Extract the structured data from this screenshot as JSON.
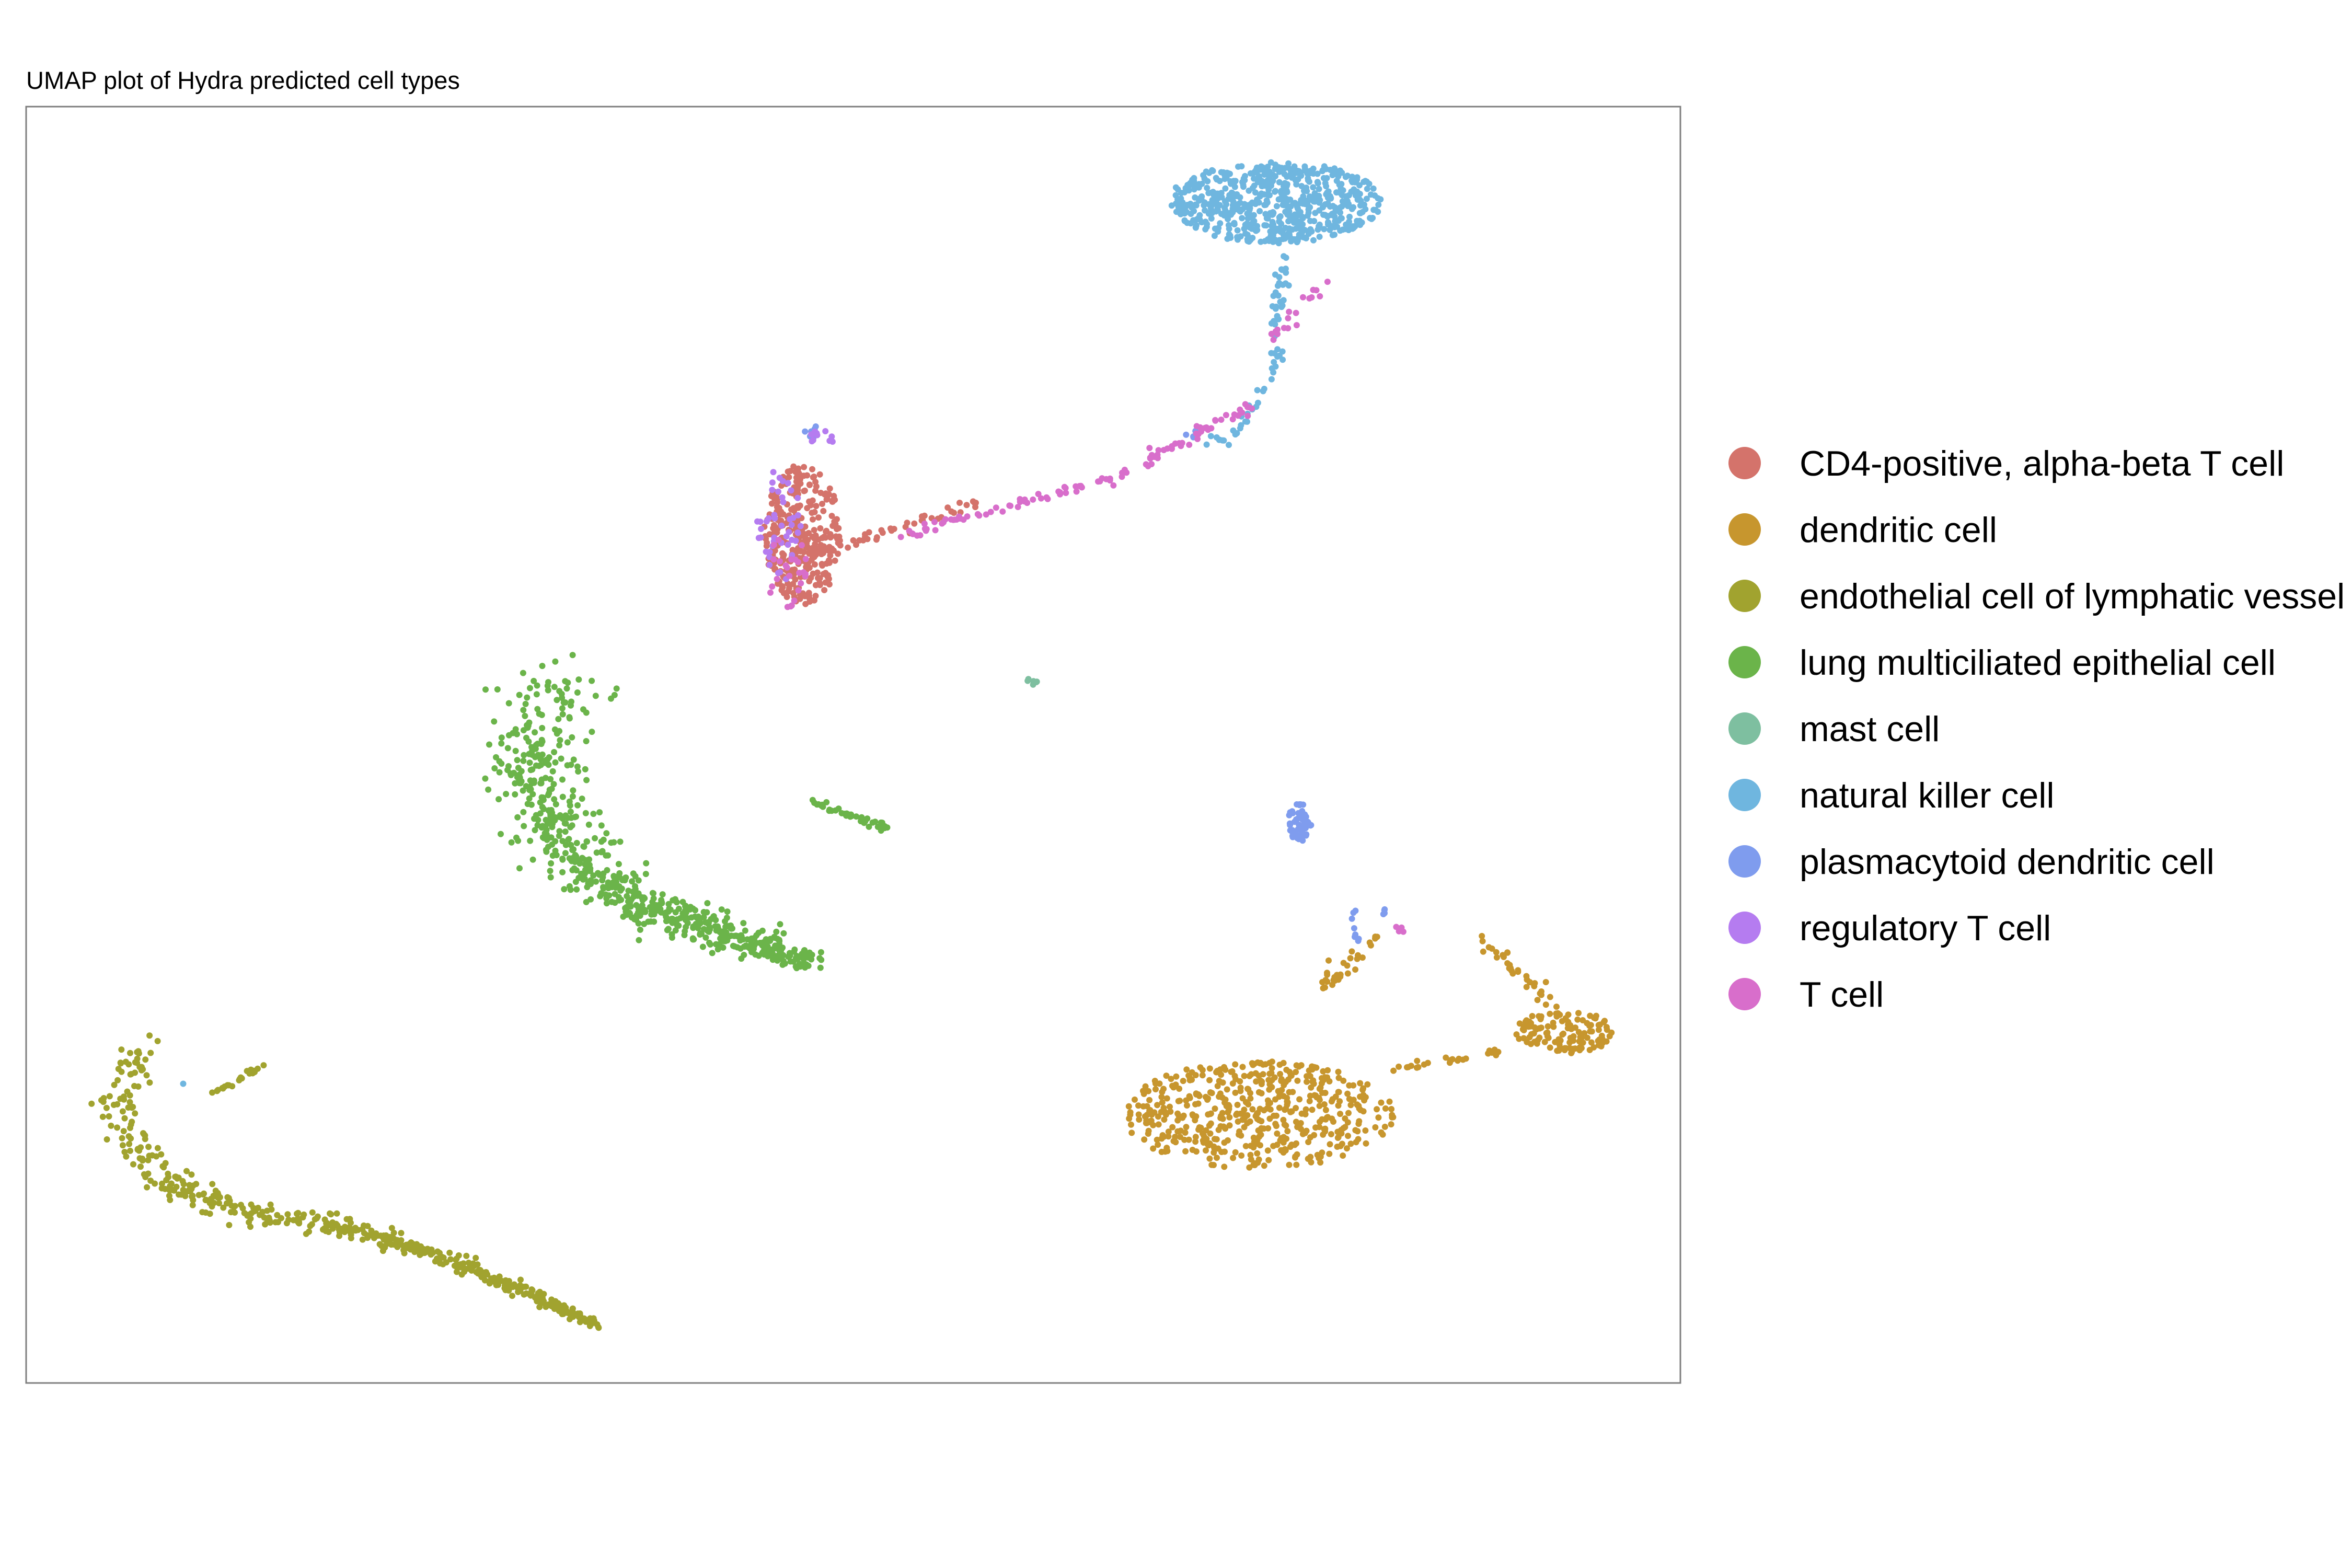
{
  "chart_data": {
    "type": "scatter",
    "title": "UMAP plot of Hydra predicted cell types",
    "xlabel": "",
    "ylabel": "",
    "xlim": [
      0,
      100
    ],
    "ylim": [
      0,
      100
    ],
    "grid": false,
    "axes_visible": false,
    "legend_position": "right",
    "series": [
      {
        "name": "CD4-positive, alpha-beta T cell",
        "color": "#D4736B",
        "clusters": [
          {
            "type": "blob",
            "cx": 47.0,
            "cy": 66.5,
            "rx": 2.4,
            "ry": 5.5,
            "n": 320
          },
          {
            "type": "line",
            "from": [
              48.0,
              65.0
            ],
            "to": [
              57.5,
              69.0
            ],
            "n": 40,
            "spread": 0.4
          }
        ]
      },
      {
        "name": "dendritic cell",
        "color": "#C7962E",
        "clusters": [
          {
            "type": "blob",
            "cx": 74.5,
            "cy": 21.0,
            "rx": 8.2,
            "ry": 4.2,
            "n": 520
          },
          {
            "type": "blob",
            "cx": 93.0,
            "cy": 27.5,
            "rx": 3.0,
            "ry": 1.7,
            "n": 120
          },
          {
            "type": "line",
            "from": [
              88.0,
              35.0
            ],
            "to": [
              93.0,
              28.5
            ],
            "n": 40,
            "spread": 0.6
          },
          {
            "type": "line",
            "from": [
              82.0,
              24.5
            ],
            "to": [
              89.5,
              26.0
            ],
            "n": 25,
            "spread": 0.4
          },
          {
            "type": "line",
            "from": [
              78.5,
              31.0
            ],
            "to": [
              82.0,
              35.5
            ],
            "n": 30,
            "spread": 0.5
          }
        ]
      },
      {
        "name": "endothelial cell of lymphatic vessel",
        "color": "#A1A32F",
        "clusters": [
          {
            "type": "curve",
            "points": [
              [
                6.8,
                26.5
              ],
              [
                5.5,
                22.0
              ],
              [
                8.0,
                16.0
              ],
              [
                13.0,
                13.5
              ],
              [
                20.0,
                12.0
              ],
              [
                27.0,
                9.0
              ],
              [
                34.5,
                4.5
              ]
            ],
            "n": 520,
            "spread": 1.1
          },
          {
            "type": "line",
            "from": [
              11.0,
              22.5
            ],
            "to": [
              14.5,
              25.0
            ],
            "n": 25,
            "spread": 0.2
          }
        ]
      },
      {
        "name": "lung multiciliated epithelial cell",
        "color": "#6BB44A",
        "clusters": [
          {
            "type": "curve",
            "points": [
              [
                33.0,
                55.5
              ],
              [
                30.0,
                48.5
              ],
              [
                33.0,
                41.0
              ],
              [
                38.0,
                37.0
              ],
              [
                43.0,
                35.0
              ],
              [
                47.5,
                33.0
              ]
            ],
            "n": 700,
            "spread": 2.6
          },
          {
            "type": "line",
            "from": [
              47.5,
              45.5
            ],
            "to": [
              52.0,
              43.5
            ],
            "n": 40,
            "spread": 0.3
          }
        ]
      },
      {
        "name": "mast cell",
        "color": "#7EBFA0",
        "clusters": [
          {
            "type": "blob",
            "cx": 60.8,
            "cy": 55.0,
            "rx": 0.3,
            "ry": 0.3,
            "n": 6
          }
        ]
      },
      {
        "name": "natural killer cell",
        "color": "#6FB6DF",
        "clusters": [
          {
            "type": "blob",
            "cx": 75.5,
            "cy": 92.5,
            "rx": 6.5,
            "ry": 3.2,
            "n": 620
          },
          {
            "type": "line",
            "from": [
              76.0,
              88.5
            ],
            "to": [
              75.5,
              79.5
            ],
            "n": 40,
            "spread": 0.4
          },
          {
            "type": "line",
            "from": [
              75.5,
              79.5
            ],
            "to": [
              72.5,
              73.0
            ],
            "n": 20,
            "spread": 0.3
          },
          {
            "type": "blob",
            "cx": 71.5,
            "cy": 74.0,
            "rx": 1.0,
            "ry": 0.5,
            "n": 8
          },
          {
            "type": "blob",
            "cx": 9.5,
            "cy": 23.5,
            "rx": 0.2,
            "ry": 0.2,
            "n": 1
          }
        ]
      },
      {
        "name": "plasmacytoid dendritic cell",
        "color": "#7F9CEE",
        "clusters": [
          {
            "type": "blob",
            "cx": 77.0,
            "cy": 44.0,
            "rx": 0.7,
            "ry": 1.6,
            "n": 55
          },
          {
            "type": "line",
            "from": [
              80.0,
              37.5
            ],
            "to": [
              80.5,
              34.5
            ],
            "n": 8,
            "spread": 0.2
          },
          {
            "type": "blob",
            "cx": 82.0,
            "cy": 37.0,
            "rx": 0.3,
            "ry": 0.3,
            "n": 4
          },
          {
            "type": "blob",
            "cx": 70.5,
            "cy": 74.5,
            "rx": 0.6,
            "ry": 0.5,
            "n": 6
          },
          {
            "type": "blob",
            "cx": 47.5,
            "cy": 74.5,
            "rx": 0.5,
            "ry": 0.5,
            "n": 8
          }
        ]
      },
      {
        "name": "regulatory T cell",
        "color": "#B57CF0",
        "clusters": [
          {
            "type": "blob",
            "cx": 45.5,
            "cy": 67.0,
            "rx": 1.4,
            "ry": 4.5,
            "n": 45
          },
          {
            "type": "blob",
            "cx": 48.0,
            "cy": 74.0,
            "rx": 0.8,
            "ry": 0.8,
            "n": 12
          }
        ]
      },
      {
        "name": "T cell",
        "color": "#D86ECB",
        "clusters": [
          {
            "type": "line",
            "from": [
              53.0,
              66.5
            ],
            "to": [
              66.0,
              71.0
            ],
            "n": 60,
            "spread": 0.4
          },
          {
            "type": "line",
            "from": [
              66.0,
              71.0
            ],
            "to": [
              74.0,
              76.5
            ],
            "n": 50,
            "spread": 0.5
          },
          {
            "type": "line",
            "from": [
              75.5,
              82.0
            ],
            "to": [
              79.0,
              86.5
            ],
            "n": 18,
            "spread": 0.4
          },
          {
            "type": "blob",
            "cx": 46.0,
            "cy": 63.5,
            "rx": 1.5,
            "ry": 3.0,
            "n": 25
          },
          {
            "type": "blob",
            "cx": 83.0,
            "cy": 35.5,
            "rx": 0.3,
            "ry": 0.3,
            "n": 4
          }
        ]
      }
    ]
  }
}
